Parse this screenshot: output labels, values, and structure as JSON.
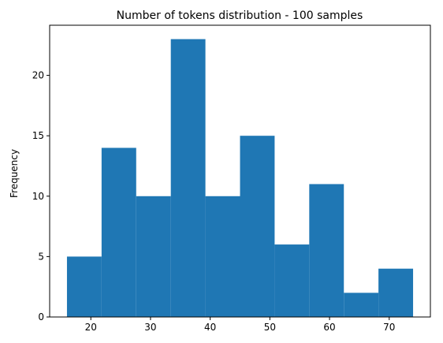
{
  "chart_data": {
    "type": "bar",
    "title": "Number of tokens distribution - 100 samples",
    "xlabel": "",
    "ylabel": "Frequency",
    "bin_edges": [
      16.0,
      21.8,
      27.6,
      33.4,
      39.2,
      45.0,
      50.8,
      56.6,
      62.4,
      68.2,
      74.0
    ],
    "values": [
      5,
      14,
      10,
      23,
      10,
      15,
      6,
      11,
      2,
      4
    ],
    "xlim": [
      13.1,
      76.9
    ],
    "ylim": [
      0,
      24.15
    ],
    "xticks": [
      20,
      30,
      40,
      50,
      60,
      70
    ],
    "yticks": [
      0,
      5,
      10,
      15,
      20
    ],
    "bar_color": "#1f77b4",
    "grid": false
  }
}
